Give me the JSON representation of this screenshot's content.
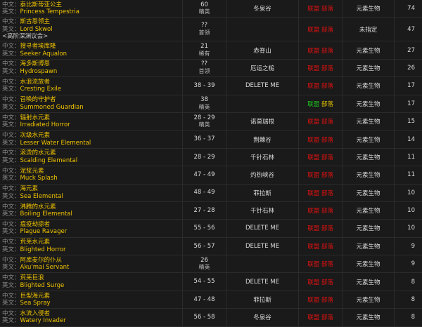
{
  "labels": {
    "cn": "中文：",
    "en": "英文："
  },
  "reaction": {
    "alliance": "联盟",
    "horde": "部落"
  },
  "colors": {
    "name": "#f0c400",
    "hostile": "#e01010",
    "friendly": "#1ec81e",
    "neutral": "#e0c000",
    "background": "#1a1a1a"
  },
  "rows": [
    {
      "cn": "泰比斯蒂亚公主",
      "en": "Princess Tempestria",
      "sub": "",
      "level": "60",
      "class": "精英",
      "zone": "冬泉谷",
      "alliance": "hostile",
      "horde": "hostile",
      "type": "元素生物",
      "count": "74"
    },
    {
      "cn": "斯古恩领主",
      "en": "Lord Skwol",
      "sub": "<高阶深渊议会>",
      "level": "??",
      "class": "首领",
      "zone": "",
      "alliance": "hostile",
      "horde": "hostile",
      "type": "未指定",
      "count": "47"
    },
    {
      "cn": "搜寻者埃库隆",
      "en": "Seeker Aqualon",
      "sub": "",
      "level": "21",
      "class": "稀有",
      "zone": "赤脊山",
      "alliance": "hostile",
      "horde": "hostile",
      "type": "元素生物",
      "count": "27"
    },
    {
      "cn": "海多斯博恩",
      "en": "Hydrospawn",
      "sub": "",
      "level": "??",
      "class": "首领",
      "zone": "厄运之槌",
      "alliance": "hostile",
      "horde": "hostile",
      "type": "元素生物",
      "count": "26"
    },
    {
      "cn": "水浪流放者",
      "en": "Cresting Exile",
      "sub": "",
      "level": "38 - 39",
      "class": "",
      "zone": "DELETE ME",
      "alliance": "hostile",
      "horde": "hostile",
      "type": "元素生物",
      "count": "17"
    },
    {
      "cn": "召唤的守护者",
      "en": "Summoned Guardian",
      "sub": "",
      "level": "38",
      "class": "精英",
      "zone": "",
      "alliance": "friendly",
      "horde": "neutral",
      "type": "元素生物",
      "count": "17"
    },
    {
      "cn": "辐射水元素",
      "en": "Irradiated Horror",
      "sub": "",
      "level": "28 - 29",
      "class": "精英",
      "zone": "诺莫瑞根",
      "alliance": "hostile",
      "horde": "hostile",
      "type": "元素生物",
      "count": "15"
    },
    {
      "cn": "次级水元素",
      "en": "Lesser Water Elemental",
      "sub": "",
      "level": "36 - 37",
      "class": "",
      "zone": "荆棘谷",
      "alliance": "hostile",
      "horde": "hostile",
      "type": "元素生物",
      "count": "14"
    },
    {
      "cn": "滚烫的水元素",
      "en": "Scalding Elemental",
      "sub": "",
      "level": "28 - 29",
      "class": "",
      "zone": "千针石林",
      "alliance": "hostile",
      "horde": "hostile",
      "type": "元素生物",
      "count": "11"
    },
    {
      "cn": "泥浆元素",
      "en": "Muck Splash",
      "sub": "",
      "level": "47 - 49",
      "class": "",
      "zone": "灼热峡谷",
      "alliance": "hostile",
      "horde": "hostile",
      "type": "元素生物",
      "count": "11"
    },
    {
      "cn": "海元素",
      "en": "Sea Elemental",
      "sub": "",
      "level": "48 - 49",
      "class": "",
      "zone": "菲拉斯",
      "alliance": "hostile",
      "horde": "hostile",
      "type": "元素生物",
      "count": "10"
    },
    {
      "cn": "沸腾的水元素",
      "en": "Boiling Elemental",
      "sub": "",
      "level": "27 - 28",
      "class": "",
      "zone": "千针石林",
      "alliance": "hostile",
      "horde": "hostile",
      "type": "元素生物",
      "count": "10"
    },
    {
      "cn": "瘟疫劫掠者",
      "en": "Plague Ravager",
      "sub": "",
      "level": "55 - 56",
      "class": "",
      "zone": "DELETE ME",
      "alliance": "hostile",
      "horde": "hostile",
      "type": "元素生物",
      "count": "10"
    },
    {
      "cn": "荒芜水元素",
      "en": "Blighted Horror",
      "sub": "",
      "level": "56 - 57",
      "class": "",
      "zone": "DELETE ME",
      "alliance": "hostile",
      "horde": "hostile",
      "type": "元素生物",
      "count": "9"
    },
    {
      "cn": "阿库麦尔的仆从",
      "en": "Aku'mai Servant",
      "sub": "",
      "level": "26",
      "class": "精英",
      "zone": "",
      "alliance": "hostile",
      "horde": "hostile",
      "type": "元素生物",
      "count": "9"
    },
    {
      "cn": "荒芜巨浪",
      "en": "Blighted Surge",
      "sub": "",
      "level": "54 - 55",
      "class": "",
      "zone": "DELETE ME",
      "alliance": "hostile",
      "horde": "hostile",
      "type": "元素生物",
      "count": "8"
    },
    {
      "cn": "巨型海元素",
      "en": "Sea Spray",
      "sub": "",
      "level": "47 - 48",
      "class": "",
      "zone": "菲拉斯",
      "alliance": "hostile",
      "horde": "hostile",
      "type": "元素生物",
      "count": "8"
    },
    {
      "cn": "水流入侵者",
      "en": "Watery Invader",
      "sub": "",
      "level": "56 - 58",
      "class": "",
      "zone": "冬泉谷",
      "alliance": "hostile",
      "horde": "hostile",
      "type": "元素生物",
      "count": "8"
    }
  ]
}
